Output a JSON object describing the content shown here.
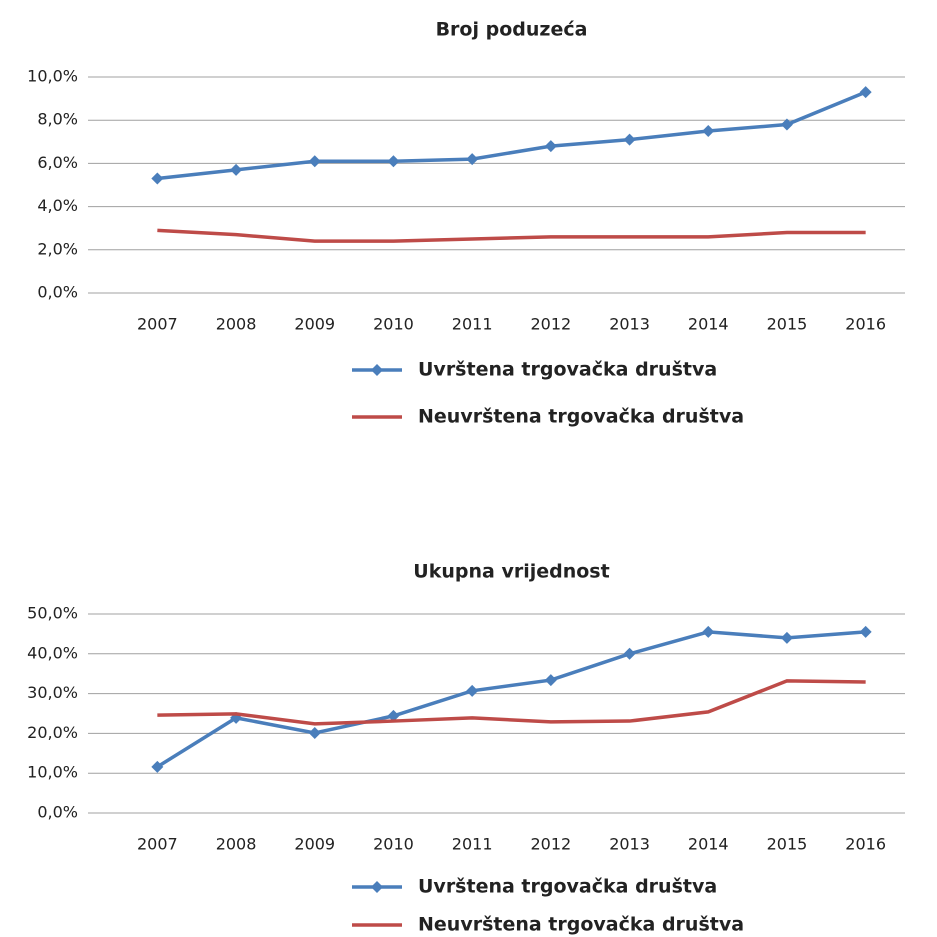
{
  "chart_data": [
    {
      "type": "line",
      "title": "Broj poduzeća",
      "categories": [
        "2007",
        "2008",
        "2009",
        "2010",
        "2011",
        "2012",
        "2013",
        "2014",
        "2015",
        "2016"
      ],
      "series": [
        {
          "name": "Uvrštena trgovačka društva",
          "color": "#4a7ebb",
          "marker": "diamond",
          "values": [
            5.3,
            5.7,
            6.1,
            6.1,
            6.2,
            6.8,
            7.1,
            7.5,
            7.8,
            9.3
          ]
        },
        {
          "name": "Neuvrštena trgovačka društva",
          "color": "#be4b48",
          "values": [
            2.9,
            2.7,
            2.4,
            2.4,
            2.5,
            2.6,
            2.6,
            2.6,
            2.8,
            2.8
          ]
        }
      ],
      "ylim": [
        0,
        10
      ],
      "yticks": [
        {
          "value": 0,
          "label": "0,0%"
        },
        {
          "value": 2,
          "label": "2,0%"
        },
        {
          "value": 4,
          "label": "4,0%"
        },
        {
          "value": 6,
          "label": "6,0%"
        },
        {
          "value": 8,
          "label": "8,0%"
        },
        {
          "value": 10,
          "label": "10,0%"
        }
      ],
      "grid": true,
      "legend": "bottom"
    },
    {
      "type": "line",
      "title": "Ukupna vrijednost",
      "categories": [
        "2007",
        "2008",
        "2009",
        "2010",
        "2011",
        "2012",
        "2013",
        "2014",
        "2015",
        "2016"
      ],
      "series": [
        {
          "name": "Uvrštena trgovačka društva",
          "color": "#4a7ebb",
          "marker": "diamond",
          "values": [
            11.6,
            23.9,
            20.1,
            24.4,
            30.7,
            33.4,
            40.0,
            45.5,
            44.0,
            45.5
          ]
        },
        {
          "name": "Neuvrštena trgovačka društva",
          "color": "#be4b48",
          "values": [
            24.6,
            24.9,
            22.4,
            23.1,
            23.9,
            22.9,
            23.1,
            25.4,
            33.2,
            32.9
          ]
        }
      ],
      "ylim": [
        0,
        50
      ],
      "yticks": [
        {
          "value": 0,
          "label": "0,0%"
        },
        {
          "value": 10,
          "label": "10,0%"
        },
        {
          "value": 20,
          "label": "20,0%"
        },
        {
          "value": 30,
          "label": "30,0%"
        },
        {
          "value": 40,
          "label": "40,0%"
        },
        {
          "value": 50,
          "label": "50,0%"
        }
      ],
      "grid": true,
      "legend": "bottom"
    }
  ]
}
